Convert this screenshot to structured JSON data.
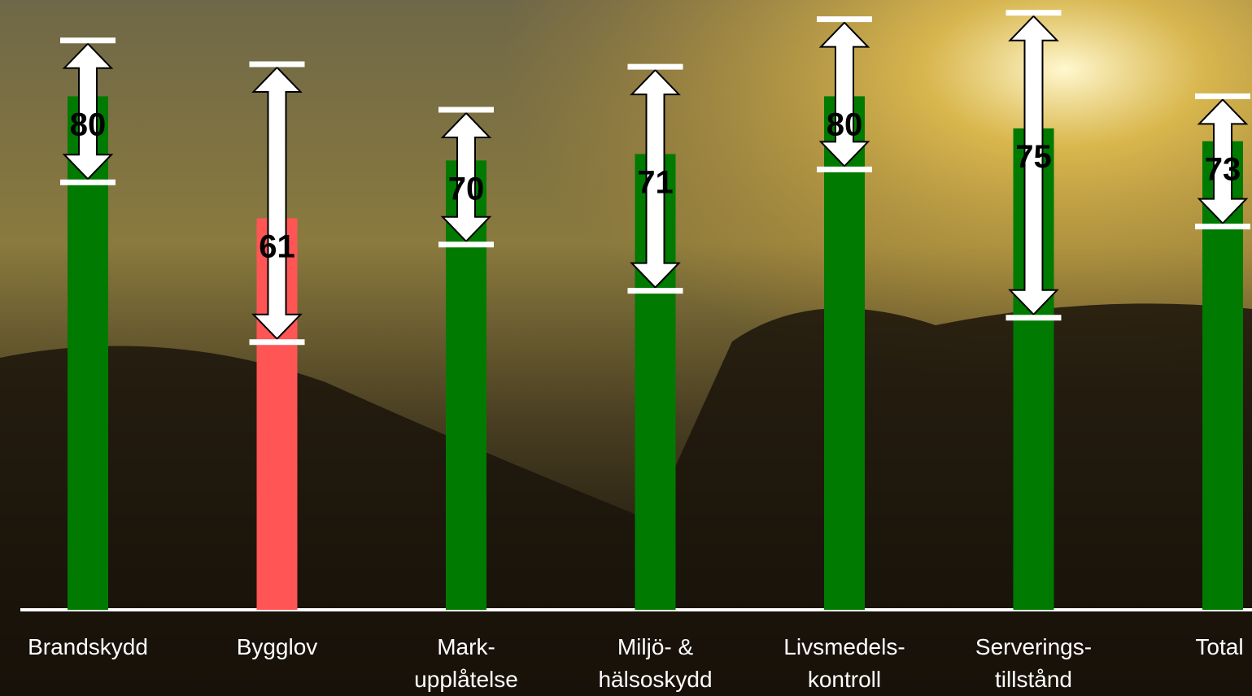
{
  "chart_data": {
    "type": "bar",
    "categories": [
      [
        "Brandskydd"
      ],
      [
        "Bygglov"
      ],
      [
        "Mark-",
        "upplåtelse"
      ],
      [
        "Miljö- &",
        "hälsoskydd"
      ],
      [
        "Livsmedels-",
        "kontroll"
      ],
      [
        "Serverings-",
        "tillstånd"
      ],
      [
        "Total"
      ]
    ],
    "values": [
      80,
      61,
      70,
      71,
      80,
      75,
      73
    ],
    "low": [
      66.6,
      41.7,
      56.9,
      49.7,
      68.6,
      45.5,
      59.7
    ],
    "high": [
      88.7,
      85.0,
      77.9,
      84.6,
      92.0,
      93.0,
      80.0
    ],
    "colors": [
      "#007a00",
      "#ff5555",
      "#007a00",
      "#007a00",
      "#007a00",
      "#007a00",
      "#007a00"
    ],
    "ylim": [
      0,
      95
    ]
  }
}
